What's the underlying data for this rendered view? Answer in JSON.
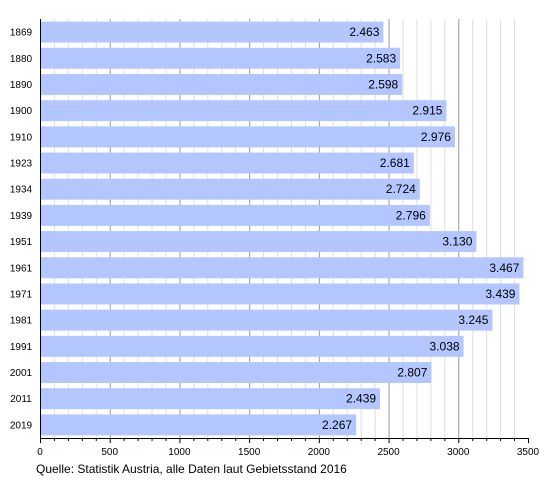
{
  "chart_data": {
    "type": "bar",
    "orientation": "horizontal",
    "categories": [
      "1869",
      "1880",
      "1890",
      "1900",
      "1910",
      "1923",
      "1934",
      "1939",
      "1951",
      "1961",
      "1971",
      "1981",
      "1991",
      "2001",
      "2011",
      "2019"
    ],
    "values": [
      2463,
      2583,
      2598,
      2915,
      2976,
      2681,
      2724,
      2796,
      3130,
      3467,
      3439,
      3245,
      3038,
      2807,
      2439,
      2267
    ],
    "value_labels": [
      "2.463",
      "2.583",
      "2.598",
      "2.915",
      "2.976",
      "2.681",
      "2.724",
      "2.796",
      "3.130",
      "3.467",
      "3.439",
      "3.245",
      "3.038",
      "2.807",
      "2.439",
      "2.267"
    ],
    "xlim": [
      0,
      3500
    ],
    "x_ticks": [
      "0",
      "500",
      "1000",
      "1500",
      "2000",
      "2500",
      "3000",
      "3500"
    ],
    "grid": "vertical",
    "bar_color": "#b3c6ff",
    "source": "Quelle: Statistik Austria, alle Daten laut Gebietsstand 2016"
  }
}
